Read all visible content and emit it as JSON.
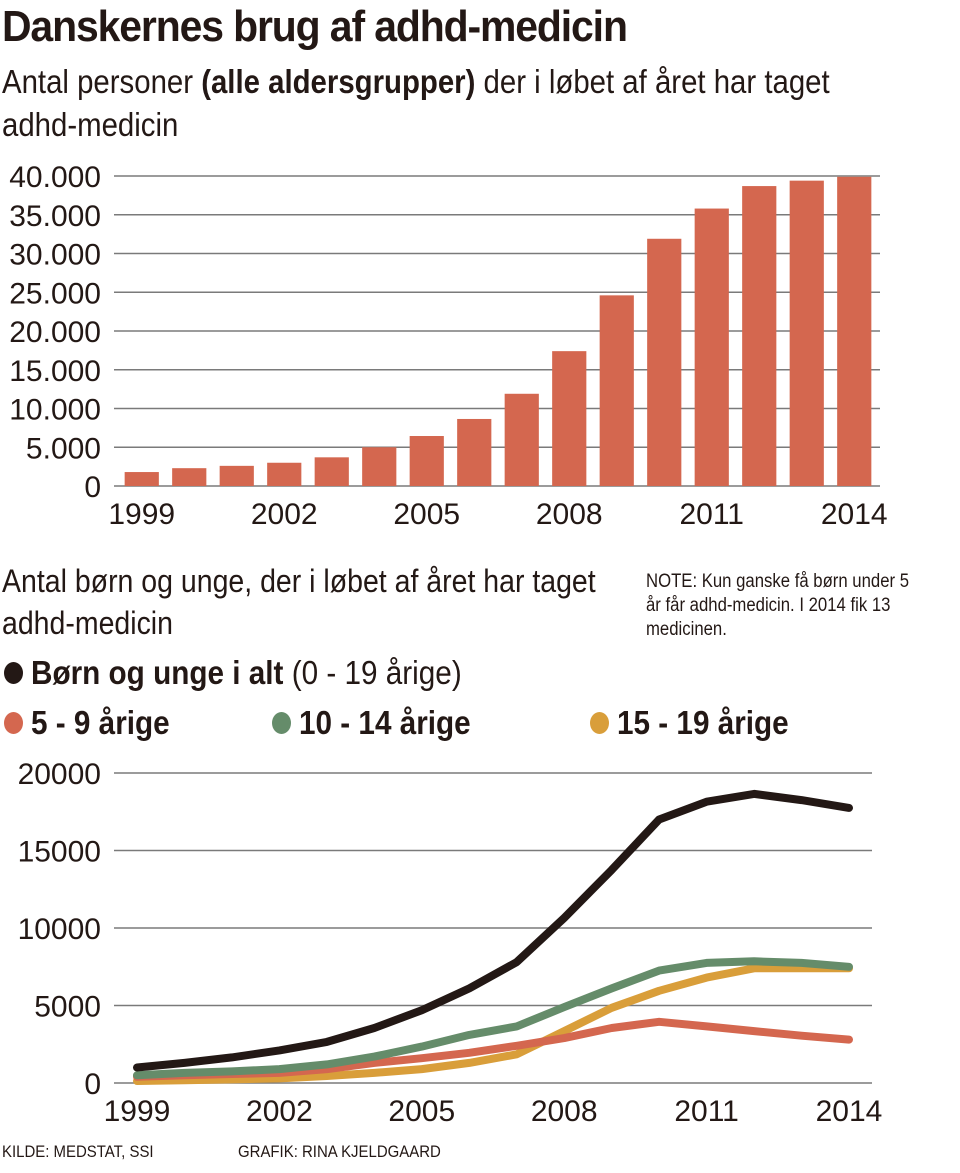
{
  "title": "Danskernes brug af adhd-medicin",
  "subtitle1": {
    "before": "Antal personer ",
    "bold": "(alle aldersgrupper)",
    "after": " der i løbet af året har taget adhd-medicin"
  },
  "subtitle2": "Antal børn og unge, der i løbet af året har taget adhd-medicin",
  "note": "NOTE: Kun ganske få børn under 5 år får adhd-medicin. I 2014 fik 13 medicinen.",
  "legend": {
    "total_bold": "Børn og unge i alt",
    "total_normal": " (0 - 19 årige)",
    "a": "5 - 9 årige",
    "b": "10 - 14 årige",
    "c": "15 - 19 årige"
  },
  "footer": {
    "source": "KILDE: MEDSTAT, SSI",
    "credit": "GRAFIK: RINA KJELDGAARD"
  },
  "chart_data": [
    {
      "type": "bar",
      "title": "Antal personer (alle aldersgrupper) der i løbet af året har taget adhd-medicin",
      "xlabel": "",
      "ylabel": "",
      "categories": [
        "1999",
        "2000",
        "2001",
        "2002",
        "2003",
        "2004",
        "2005",
        "2006",
        "2007",
        "2008",
        "2009",
        "2010",
        "2011",
        "2012",
        "2013",
        "2014"
      ],
      "values": [
        1800,
        2300,
        2600,
        3000,
        3700,
        5000,
        6450,
        8650,
        11900,
        17400,
        24600,
        31900,
        35800,
        38700,
        39400,
        39900
      ],
      "ylim": [
        0,
        40000
      ],
      "yticks": [
        0,
        5000,
        10000,
        15000,
        20000,
        25000,
        30000,
        35000,
        40000
      ],
      "ytick_labels": [
        "0",
        "5.000",
        "10.000",
        "15.000",
        "20.000",
        "25.000",
        "30.000",
        "35.000",
        "40.000"
      ],
      "xtick_labels": [
        "1999",
        "2002",
        "2005",
        "2008",
        "2011",
        "2014"
      ],
      "grid": true,
      "color": "#d4674f"
    },
    {
      "type": "line",
      "title": "Antal børn og unge, der i løbet af året har taget adhd-medicin",
      "xlabel": "",
      "ylabel": "",
      "x": [
        1999,
        2000,
        2001,
        2002,
        2003,
        2004,
        2005,
        2006,
        2007,
        2008,
        2009,
        2010,
        2011,
        2012,
        2013,
        2014
      ],
      "series": [
        {
          "name": "Børn og unge i alt (0 - 19 årige)",
          "color": "#231815",
          "values": [
            1000,
            1300,
            1650,
            2100,
            2650,
            3550,
            4700,
            6100,
            7800,
            10650,
            13750,
            17000,
            18150,
            18650,
            18250,
            17750
          ]
        },
        {
          "name": "10 - 14 årige",
          "color": "#658c6a",
          "values": [
            500,
            650,
            750,
            900,
            1200,
            1700,
            2350,
            3100,
            3650,
            4900,
            6100,
            7250,
            7750,
            7850,
            7750,
            7500
          ]
        },
        {
          "name": "5 - 9 årige",
          "color": "#d4674f",
          "values": [
            400,
            500,
            580,
            650,
            900,
            1300,
            1600,
            1950,
            2400,
            2900,
            3550,
            3950,
            3650,
            3350,
            3050,
            2800
          ]
        },
        {
          "name": "15 - 19 årige",
          "color": "#d99e3a",
          "values": [
            130,
            180,
            230,
            300,
            450,
            650,
            900,
            1300,
            1850,
            3350,
            4850,
            5950,
            6800,
            7400,
            7400,
            7400
          ]
        }
      ],
      "ylim": [
        0,
        20000
      ],
      "yticks": [
        0,
        5000,
        10000,
        15000,
        20000
      ],
      "ytick_labels": [
        "0",
        "5000",
        "10000",
        "15000",
        "20000"
      ],
      "xtick_labels": [
        "1999",
        "2002",
        "2005",
        "2008",
        "2011",
        "2014"
      ],
      "grid": true,
      "legend_position": "top"
    }
  ]
}
